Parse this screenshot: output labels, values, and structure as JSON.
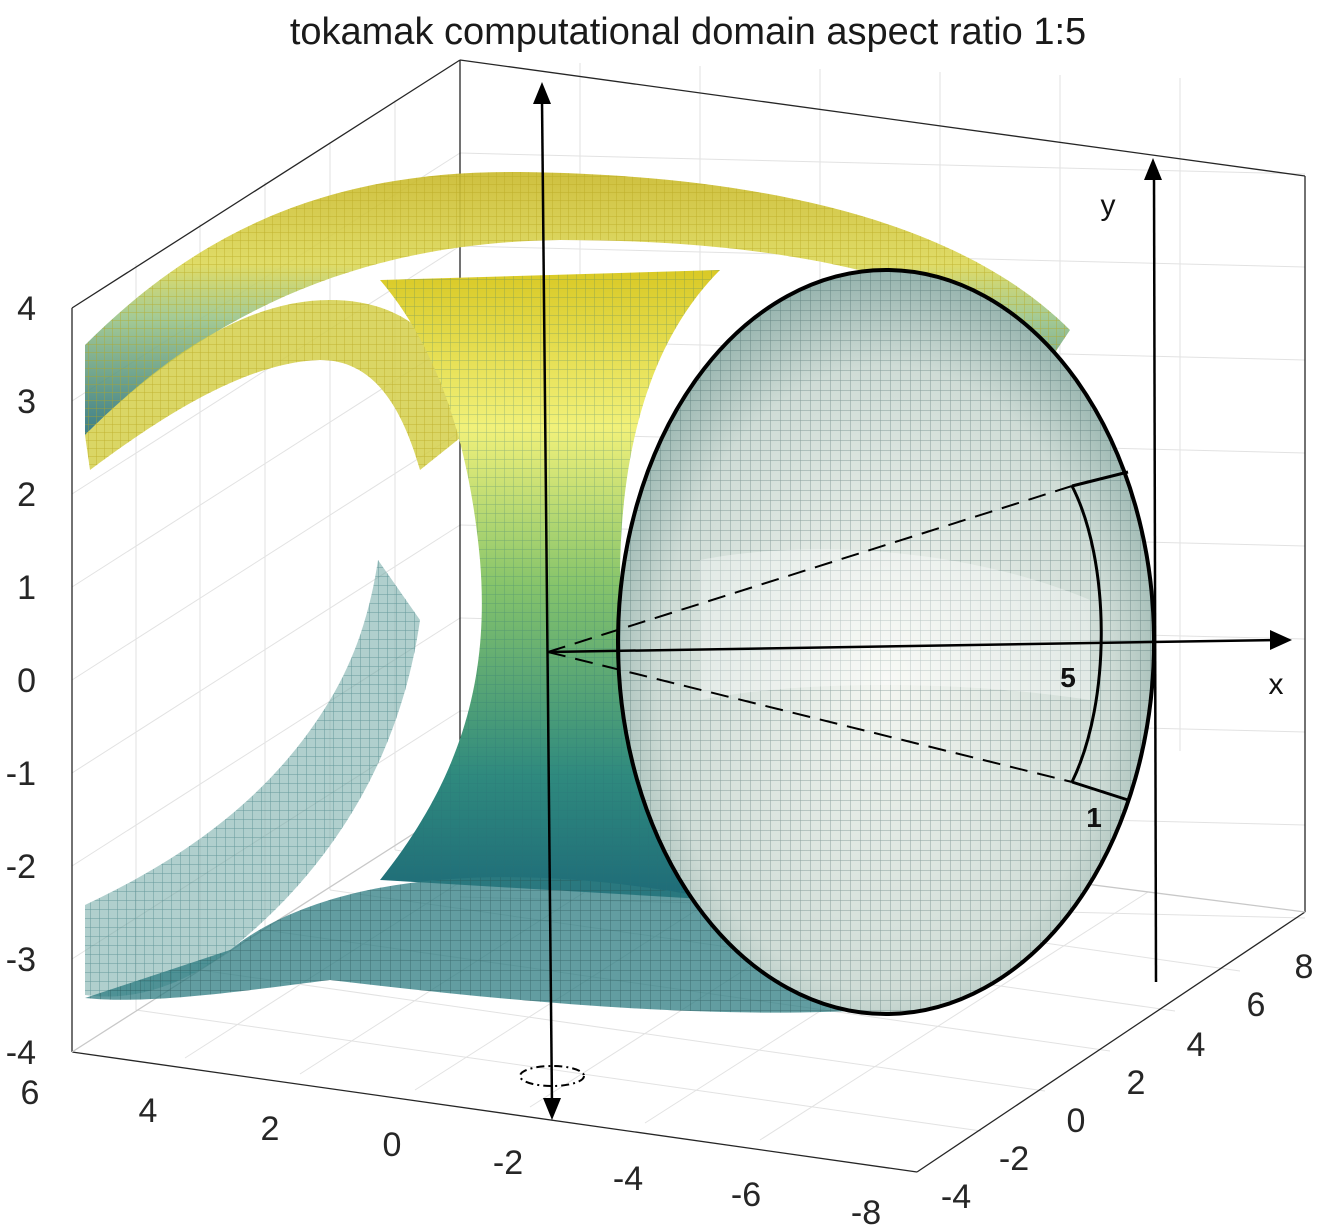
{
  "figure": {
    "title": "tokamak computational domain  aspect ratio 1:5"
  },
  "axes": {
    "z_ticks": [
      "4",
      "3",
      "2",
      "1",
      "0",
      "-1",
      "-2",
      "-3",
      "-4"
    ],
    "x_ticks": [
      "6",
      "4",
      "2",
      "0",
      "-2",
      "-4",
      "-6",
      "-8"
    ],
    "y_ticks": [
      "8",
      "6",
      "4",
      "2",
      "0",
      "-2",
      "-4"
    ]
  },
  "annotations": {
    "local_x_label": "x",
    "local_y_label": "y",
    "major_radius_label": "5",
    "minor_radius_label": "1"
  },
  "colors": {
    "surface_top": "#d6c21e",
    "surface_mid": "#7cc070",
    "surface_bottom": "#1f6f78",
    "highlight": "#f4f68c",
    "cross_section": "#000000"
  }
}
